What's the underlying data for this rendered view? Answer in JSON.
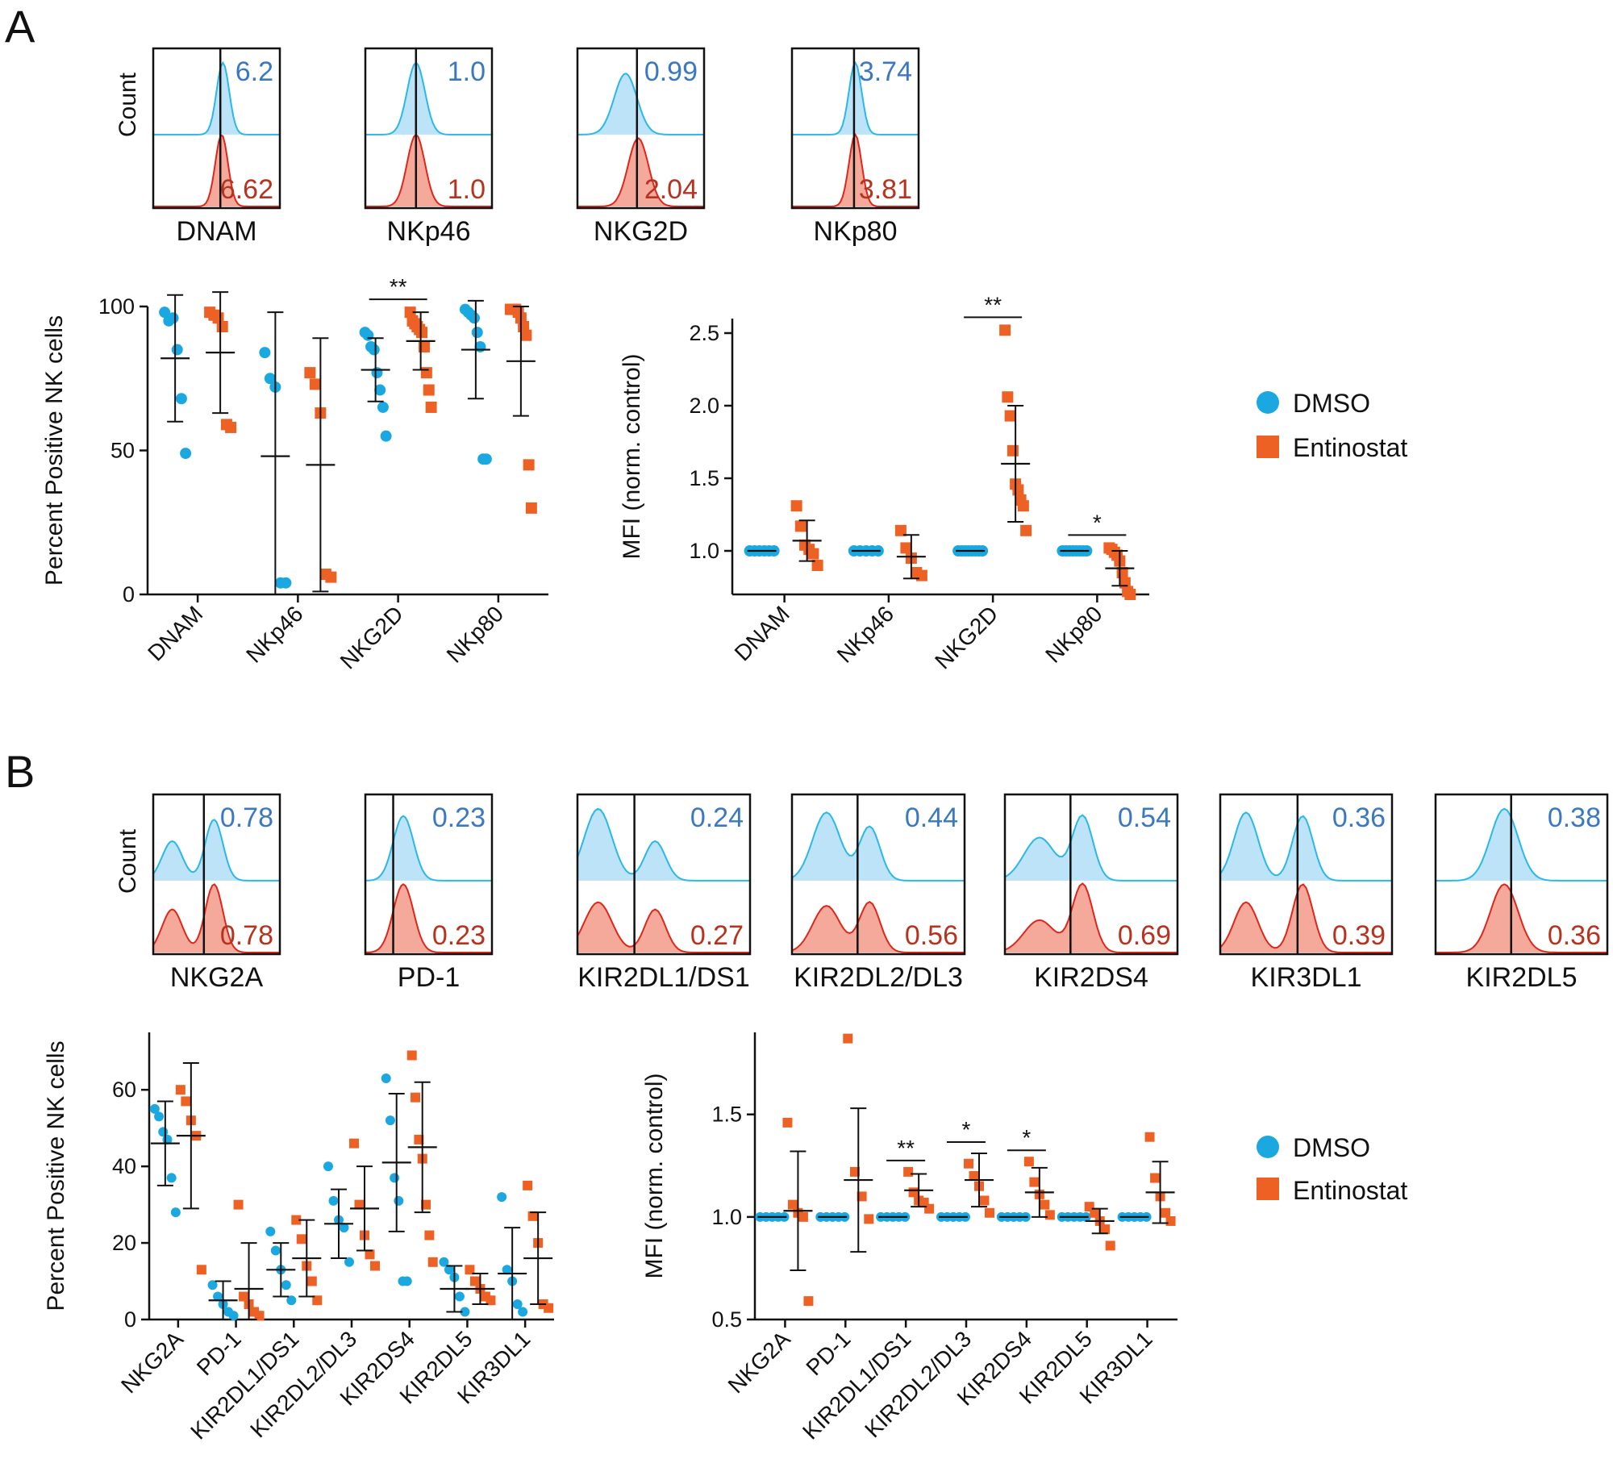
{
  "colors": {
    "dmso": "#1BA8E0",
    "entinostat": "#EE6125",
    "hist_dmso_line": "#29B8E8",
    "hist_dmso_fill": "#BCE3F7",
    "hist_ent_line": "#E0261B",
    "hist_ent_fill": "#F4A99A",
    "value_top": "#3B78C2",
    "value_bottom": "#B5331F"
  },
  "panels": {
    "A": {
      "letter": "A",
      "count_label": "Count",
      "histograms": [
        {
          "label": "DNAM",
          "top_value": "6.2",
          "bottom_value": "6.62"
        },
        {
          "label": "NKp46",
          "top_value": "1.0",
          "bottom_value": "1.0"
        },
        {
          "label": "NKG2D",
          "top_value": "0.99",
          "bottom_value": "2.04"
        },
        {
          "label": "NKp80",
          "top_value": "3.74",
          "bottom_value": "3.81"
        }
      ],
      "legend": {
        "items": [
          {
            "label": "DMSO",
            "marker": "circle"
          },
          {
            "label": "Entinostat",
            "marker": "square"
          }
        ]
      }
    },
    "B": {
      "letter": "B",
      "count_label": "Count",
      "histograms": [
        {
          "label": "NKG2A",
          "top_value": "0.78",
          "bottom_value": "0.78"
        },
        {
          "label": "PD-1",
          "top_value": "0.23",
          "bottom_value": "0.23"
        },
        {
          "label": "KIR2DL1/DS1",
          "top_value": "0.24",
          "bottom_value": "0.27"
        },
        {
          "label": "KIR2DL2/DL3",
          "top_value": "0.44",
          "bottom_value": "0.56"
        },
        {
          "label": "KIR2DS4",
          "top_value": "0.54",
          "bottom_value": "0.69"
        },
        {
          "label": "KIR3DL1",
          "top_value": "0.36",
          "bottom_value": "0.39"
        },
        {
          "label": "KIR2DL5",
          "top_value": "0.38",
          "bottom_value": "0.36"
        }
      ],
      "legend": {
        "items": [
          {
            "label": "DMSO",
            "marker": "circle"
          },
          {
            "label": "Entinostat",
            "marker": "square"
          }
        ]
      }
    }
  },
  "chart_data": [
    {
      "id": "A-percent",
      "type": "scatter",
      "ylabel": "Percent Positive NK cells",
      "ylim": [
        0,
        100
      ],
      "yticks": [
        0,
        50,
        100
      ],
      "categories": [
        "DNAM",
        "NKp46",
        "NKG2D",
        "NKp80"
      ],
      "series": [
        {
          "name": "DMSO",
          "marker": "circle",
          "points": [
            [
              98,
              95,
              96,
              85,
              68,
              49
            ],
            [
              84,
              75,
              72,
              4,
              4
            ],
            [
              91,
              90,
              86,
              85,
              77,
              71,
              65,
              55
            ],
            [
              99,
              98,
              97,
              96,
              91,
              86,
              47,
              47
            ]
          ],
          "mean": [
            82,
            48,
            78,
            85
          ],
          "sd": [
            22,
            50,
            11,
            17
          ]
        },
        {
          "name": "Entinostat",
          "marker": "square",
          "points": [
            [
              98,
              97,
              96,
              93,
              59,
              58
            ],
            [
              77,
              73,
              63,
              7,
              6
            ],
            [
              98,
              95,
              94,
              93,
              92,
              91,
              86,
              77,
              71,
              65
            ],
            [
              99,
              99,
              99,
              98,
              96,
              93,
              90,
              45,
              30
            ]
          ],
          "mean": [
            84,
            45,
            88,
            81
          ],
          "sd": [
            21,
            44,
            10,
            19
          ]
        }
      ],
      "significance": [
        {
          "category": "NKG2D",
          "label": "**"
        }
      ]
    },
    {
      "id": "A-mfi",
      "type": "scatter",
      "ylabel": "MFI (norm. control)",
      "ylim": [
        0.7,
        2.6
      ],
      "yticks": [
        1.0,
        1.5,
        2.0,
        2.5
      ],
      "categories": [
        "DNAM",
        "NKp46",
        "NKG2D",
        "NKp80"
      ],
      "series": [
        {
          "name": "DMSO",
          "marker": "circle",
          "points": [
            [
              1,
              1,
              1,
              1,
              1,
              1
            ],
            [
              1,
              1,
              1,
              1,
              1
            ],
            [
              1,
              1,
              1,
              1,
              1,
              1,
              1,
              1
            ],
            [
              1,
              1,
              1,
              1,
              1,
              1,
              1,
              1
            ]
          ],
          "mean": [
            1,
            1,
            1,
            1
          ],
          "sd": [
            0,
            0,
            0,
            0
          ]
        },
        {
          "name": "Entinostat",
          "marker": "square",
          "points": [
            [
              1.31,
              1.17,
              1.04,
              1.01,
              0.98,
              0.9
            ],
            [
              1.14,
              1.02,
              0.95,
              0.85,
              0.83
            ],
            [
              2.52,
              2.06,
              1.93,
              1.69,
              1.46,
              1.42,
              1.35,
              1.31,
              1.14
            ],
            [
              1.02,
              1.01,
              0.99,
              0.97,
              0.93,
              0.85,
              0.78,
              0.72,
              0.7
            ]
          ],
          "mean": [
            1.07,
            0.96,
            1.6,
            0.88
          ],
          "sd": [
            0.14,
            0.15,
            0.4,
            0.12
          ]
        }
      ],
      "significance": [
        {
          "category": "NKG2D",
          "label": "**"
        },
        {
          "category": "NKp80",
          "label": "*"
        }
      ]
    },
    {
      "id": "B-percent",
      "type": "scatter",
      "ylabel": "Percent Positive NK cells",
      "ylim": [
        0,
        75
      ],
      "yticks": [
        0,
        20,
        40,
        60
      ],
      "categories": [
        "NKG2A",
        "PD-1",
        "KIR2DL1/DS1",
        "KIR2DL2/DL3",
        "KIR2DS4",
        "KIR2DL5",
        "KIR3DL1"
      ],
      "series": [
        {
          "name": "DMSO",
          "marker": "circle",
          "points": [
            [
              55,
              53,
              49,
              47,
              37,
              28
            ],
            [
              9,
              6,
              4,
              2,
              1
            ],
            [
              23,
              18,
              13,
              9,
              5
            ],
            [
              40,
              31,
              26,
              24,
              15
            ],
            [
              63,
              52,
              37,
              31,
              10,
              10
            ],
            [
              15,
              13,
              11,
              6,
              2
            ],
            [
              32,
              13,
              10,
              4,
              2
            ]
          ],
          "mean": [
            46,
            5,
            13,
            25,
            41,
            8,
            12
          ],
          "sd": [
            11,
            5,
            7,
            9,
            18,
            6,
            12
          ]
        },
        {
          "name": "Entinostat",
          "marker": "square",
          "points": [
            [
              60,
              57,
              52,
              48,
              13
            ],
            [
              30,
              6,
              4,
              2,
              1
            ],
            [
              26,
              21,
              14,
              10,
              5
            ],
            [
              46,
              30,
              22,
              17,
              14
            ],
            [
              69,
              58,
              47,
              42,
              30,
              22,
              15
            ],
            [
              13,
              10,
              8,
              6,
              5
            ],
            [
              35,
              27,
              20,
              4,
              3
            ]
          ],
          "mean": [
            48,
            8,
            16,
            29,
            45,
            8,
            16
          ],
          "sd": [
            19,
            12,
            10,
            11,
            17,
            4,
            12
          ]
        }
      ]
    },
    {
      "id": "B-mfi",
      "type": "scatter",
      "ylabel": "MFI (norm. control)",
      "ylim": [
        0.5,
        1.9
      ],
      "yticks": [
        0.5,
        1.0,
        1.5
      ],
      "categories": [
        "NKG2A",
        "PD-1",
        "KIR2DL1/DS1",
        "KIR2DL2/DL3",
        "KIR2DS4",
        "KIR2DL5",
        "KIR3DL1"
      ],
      "series": [
        {
          "name": "DMSO",
          "marker": "circle",
          "points": [
            [
              1,
              1,
              1,
              1,
              1
            ],
            [
              1,
              1,
              1,
              1,
              1
            ],
            [
              1,
              1,
              1,
              1,
              1
            ],
            [
              1,
              1,
              1,
              1,
              1
            ],
            [
              1,
              1,
              1,
              1,
              1
            ],
            [
              1,
              1,
              1,
              1,
              1
            ],
            [
              1,
              1,
              1,
              1,
              1
            ]
          ],
          "mean": [
            1,
            1,
            1,
            1,
            1,
            1,
            1
          ],
          "sd": [
            0,
            0,
            0,
            0,
            0,
            0,
            0
          ]
        },
        {
          "name": "Entinostat",
          "marker": "square",
          "points": [
            [
              1.46,
              1.06,
              1.02,
              1.0,
              0.59
            ],
            [
              1.87,
              1.22,
              1.1,
              0.99
            ],
            [
              1.22,
              1.12,
              1.08,
              1.07,
              1.04
            ],
            [
              1.26,
              1.2,
              1.15,
              1.08,
              1.02
            ],
            [
              1.27,
              1.17,
              1.11,
              1.06,
              1.01
            ],
            [
              1.05,
              1.02,
              0.98,
              0.94,
              0.86
            ],
            [
              1.39,
              1.19,
              1.1,
              1.02,
              0.98
            ]
          ],
          "mean": [
            1.03,
            1.18,
            1.13,
            1.18,
            1.12,
            0.98,
            1.12
          ],
          "sd": [
            0.29,
            0.35,
            0.08,
            0.13,
            0.12,
            0.06,
            0.15
          ]
        }
      ],
      "significance": [
        {
          "category": "KIR2DL1/DS1",
          "label": "**"
        },
        {
          "category": "KIR2DL2/DL3",
          "label": "*"
        },
        {
          "category": "KIR2DS4",
          "label": "*"
        }
      ]
    }
  ]
}
